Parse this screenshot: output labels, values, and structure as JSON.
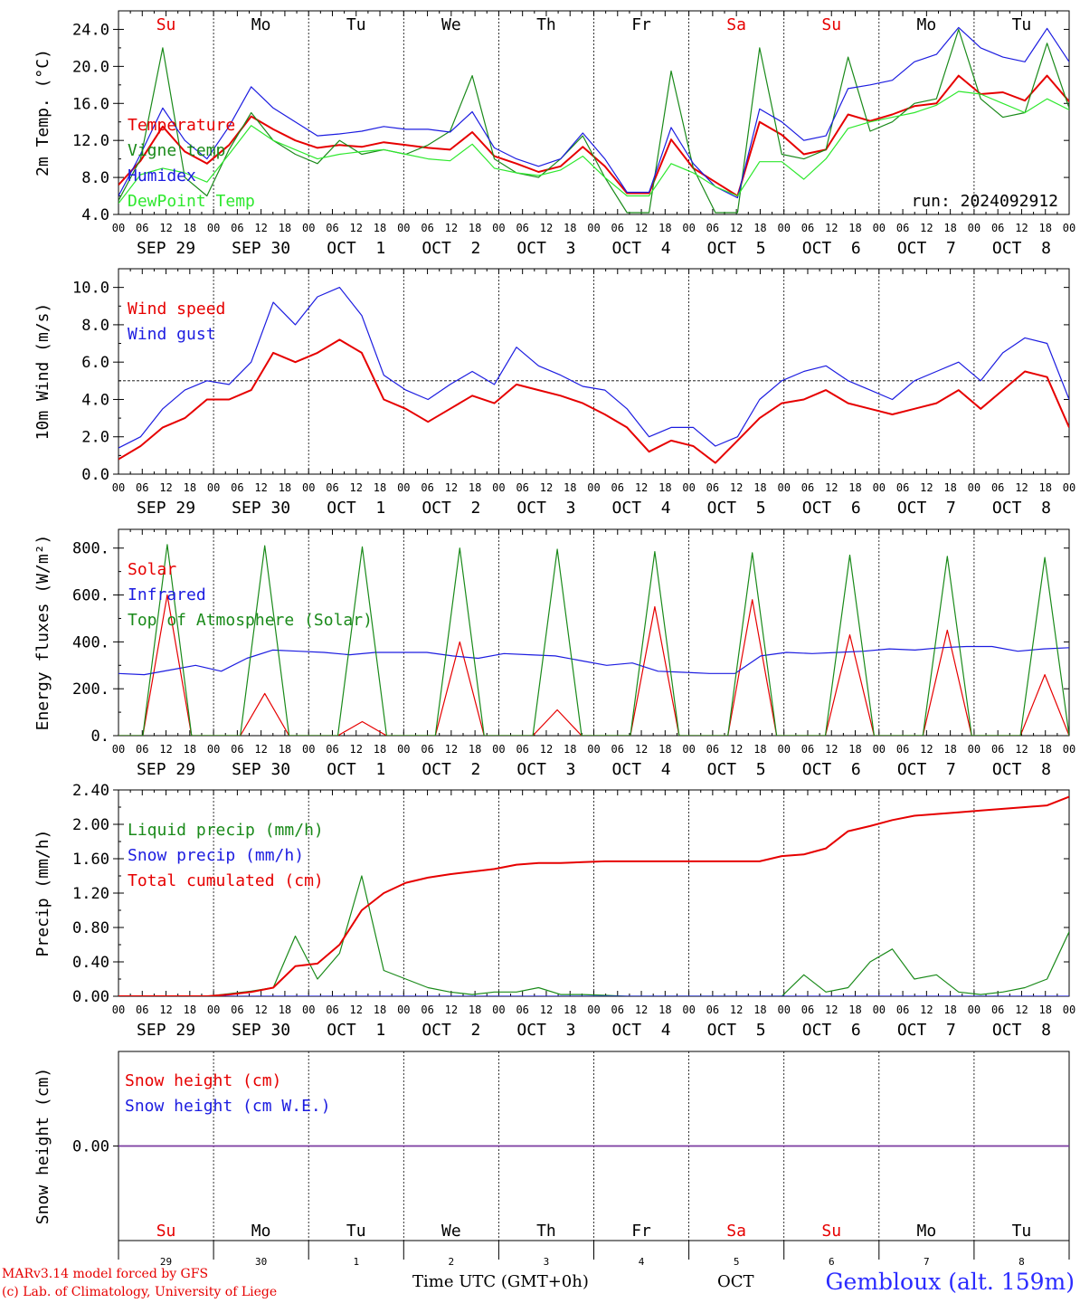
{
  "days": [
    {
      "abbr": "Su",
      "label": "SEP 29",
      "num": "29",
      "weekend": true
    },
    {
      "abbr": "Mo",
      "label": "SEP 30",
      "num": "30",
      "weekend": false
    },
    {
      "abbr": "Tu",
      "label": "OCT  1",
      "num": "1",
      "weekend": false
    },
    {
      "abbr": "We",
      "label": "OCT  2",
      "num": "2",
      "weekend": false
    },
    {
      "abbr": "Th",
      "label": "OCT  3",
      "num": "3",
      "weekend": false
    },
    {
      "abbr": "Fr",
      "label": "OCT  4",
      "num": "4",
      "weekend": false
    },
    {
      "abbr": "Sa",
      "label": "OCT  5",
      "num": "5",
      "weekend": true
    },
    {
      "abbr": "Su",
      "label": "OCT  6",
      "num": "6",
      "weekend": true
    },
    {
      "abbr": "Mo",
      "label": "OCT  7",
      "num": "7",
      "weekend": false
    },
    {
      "abbr": "Tu",
      "label": "OCT  8",
      "num": "8",
      "weekend": false
    }
  ],
  "hour_ticks": [
    "00",
    "06",
    "12",
    "18"
  ],
  "colors": {
    "red": "#e60000",
    "green": "#1a8a1a",
    "blue": "#1c1ce0",
    "lightgreen": "#2ee82e",
    "purple": "#7a3aa0",
    "weekend": "#e60000"
  },
  "chart_data": [
    {
      "type": "line",
      "ylabel": "2m Temp. (°C)",
      "ylim": [
        4,
        26
      ],
      "yticks": [
        "4.0",
        "8.0",
        "12.0",
        "16.0",
        "20.0",
        "24.0"
      ],
      "annotation": "run: 2024092912",
      "x_hours_start": 0,
      "step_hours": 6,
      "series": [
        {
          "name": "Temperature",
          "color": "red",
          "values": [
            7.2,
            9.8,
            13.5,
            10.8,
            9.5,
            11.5,
            14.6,
            13.2,
            12.0,
            11.2,
            11.5,
            11.3,
            11.8,
            11.5,
            11.2,
            11.0,
            12.9,
            10.3,
            9.5,
            8.6,
            9.2,
            11.3,
            9.2,
            6.3,
            6.3,
            12.1,
            9.0,
            7.5,
            6.0,
            14.0,
            12.6,
            10.5,
            11.0,
            14.8,
            14.1,
            14.8,
            15.7,
            16.0,
            19.0,
            17.0,
            17.2,
            16.3,
            19.0,
            16.2
          ]
        },
        {
          "name": "Vigne temp",
          "color": "green",
          "values": [
            5.5,
            10.0,
            22.0,
            8.0,
            6.0,
            11.0,
            15.0,
            12.0,
            10.5,
            9.5,
            12.0,
            10.5,
            11.0,
            10.5,
            11.5,
            13.0,
            19.0,
            10.0,
            8.5,
            8.0,
            10.0,
            12.5,
            8.0,
            4.2,
            4.2,
            19.5,
            9.0,
            4.2,
            4.2,
            22.0,
            10.5,
            10.0,
            11.0,
            21.0,
            13.0,
            14.0,
            16.0,
            16.5,
            24.0,
            16.5,
            14.5,
            15.0,
            22.5,
            15.5
          ]
        },
        {
          "name": "Humidex",
          "color": "blue",
          "values": [
            6.0,
            10.5,
            15.5,
            12.0,
            10.0,
            13.5,
            17.8,
            15.5,
            14.0,
            12.5,
            12.7,
            13.0,
            13.5,
            13.2,
            13.2,
            12.9,
            15.1,
            11.2,
            10.0,
            9.2,
            10.0,
            12.8,
            10.0,
            6.4,
            6.4,
            13.4,
            9.5,
            7.0,
            5.8,
            15.4,
            14.0,
            12.0,
            12.5,
            17.6,
            18.0,
            18.5,
            20.5,
            21.3,
            24.2,
            22.0,
            21.0,
            20.5,
            24.1,
            20.5
          ]
        },
        {
          "name": "DewPoint Temp",
          "color": "lightgreen",
          "values": [
            5.2,
            8.3,
            9.0,
            8.5,
            7.5,
            10.5,
            13.6,
            12.0,
            11.0,
            10.0,
            10.5,
            10.8,
            11.0,
            10.5,
            10.0,
            9.8,
            11.6,
            9.0,
            8.5,
            8.2,
            8.8,
            10.3,
            8.0,
            6.0,
            6.0,
            9.5,
            8.5,
            7.0,
            6.0,
            9.7,
            9.7,
            7.8,
            10.0,
            13.3,
            14.0,
            14.5,
            15.0,
            15.8,
            17.3,
            17.0,
            16.0,
            15.0,
            16.5,
            15.3
          ]
        }
      ]
    },
    {
      "type": "line",
      "ylabel": "10m Wind (m/s)",
      "ylim": [
        0,
        11
      ],
      "yticks": [
        "0.0",
        "2.0",
        "4.0",
        "6.0",
        "8.0",
        "10.0"
      ],
      "reference_line": 5,
      "x_hours_start": 0,
      "step_hours": 6,
      "series": [
        {
          "name": "Wind speed",
          "color": "red",
          "values": [
            0.8,
            1.5,
            2.5,
            3.0,
            4.0,
            4.0,
            4.5,
            6.5,
            6.0,
            6.5,
            7.2,
            6.5,
            4.0,
            3.5,
            2.8,
            3.5,
            4.2,
            3.8,
            4.8,
            4.5,
            4.2,
            3.8,
            3.2,
            2.5,
            1.2,
            1.8,
            1.5,
            0.6,
            1.8,
            3.0,
            3.8,
            4.0,
            4.5,
            3.8,
            3.5,
            3.2,
            3.5,
            3.8,
            4.5,
            3.5,
            4.5,
            5.5,
            5.2,
            2.5
          ]
        },
        {
          "name": "Wind gust",
          "color": "blue",
          "values": [
            1.4,
            2.0,
            3.5,
            4.5,
            5.0,
            4.8,
            6.0,
            9.2,
            8.0,
            9.5,
            10.0,
            8.5,
            5.3,
            4.5,
            4.0,
            4.8,
            5.5,
            4.8,
            6.8,
            5.8,
            5.3,
            4.7,
            4.5,
            3.5,
            2.0,
            2.5,
            2.5,
            1.5,
            2.0,
            4.0,
            5.0,
            5.5,
            5.8,
            5.0,
            4.5,
            4.0,
            5.0,
            5.5,
            6.0,
            5.0,
            6.5,
            7.3,
            7.0,
            4.0
          ]
        }
      ]
    },
    {
      "type": "line",
      "ylabel": "Energy fluxes (W/m²)",
      "ylim": [
        0,
        880
      ],
      "yticks": [
        "0.",
        "200.",
        "400.",
        "600.",
        "800."
      ],
      "x_hours_start": 0,
      "step_hours": 6,
      "series": [
        {
          "name": "Solar",
          "color": "red",
          "values": [
            0,
            0,
            600,
            0,
            0,
            0,
            180,
            0,
            0,
            0,
            60,
            0,
            0,
            0,
            400,
            0,
            0,
            0,
            110,
            0,
            0,
            0,
            550,
            0,
            0,
            0,
            580,
            0,
            0,
            0,
            430,
            0,
            0,
            0,
            450,
            0,
            0,
            0,
            260,
            0
          ]
        },
        {
          "name": "Infrared",
          "color": "blue",
          "values": [
            265,
            260,
            280,
            300,
            275,
            330,
            365,
            360,
            355,
            345,
            355,
            355,
            355,
            340,
            330,
            350,
            345,
            340,
            320,
            300,
            310,
            275,
            270,
            265,
            265,
            340,
            355,
            350,
            355,
            360,
            370,
            365,
            375,
            380,
            380,
            360,
            370,
            375
          ]
        },
        {
          "name": "Top of Atmosphere (Solar)",
          "color": "green",
          "values": [
            0,
            0,
            815,
            0,
            0,
            0,
            810,
            0,
            0,
            0,
            805,
            0,
            0,
            0,
            800,
            0,
            0,
            0,
            795,
            0,
            0,
            0,
            785,
            0,
            0,
            0,
            780,
            0,
            0,
            0,
            770,
            0,
            0,
            0,
            765,
            0,
            0,
            0,
            760,
            0
          ]
        }
      ]
    },
    {
      "type": "line",
      "ylabel": "Precip (mm/h)",
      "ylim": [
        0,
        2.4
      ],
      "yticks": [
        "0.00",
        "0.40",
        "0.80",
        "1.20",
        "1.60",
        "2.00",
        "2.40"
      ],
      "x_hours_start": 0,
      "step_hours": 6,
      "series": [
        {
          "name": "Liquid precip (mm/h)",
          "color": "green",
          "values": [
            0,
            0,
            0,
            0,
            0,
            0.03,
            0.06,
            0.1,
            0.7,
            0.2,
            0.5,
            1.4,
            0.3,
            0.2,
            0.1,
            0.05,
            0.02,
            0.05,
            0.05,
            0.1,
            0.02,
            0.02,
            0.01,
            0,
            0,
            0,
            0,
            0,
            0,
            0,
            0,
            0.25,
            0.05,
            0.1,
            0.4,
            0.55,
            0.2,
            0.25,
            0.05,
            0.02,
            0.05,
            0.1,
            0.2,
            0.75
          ]
        },
        {
          "name": "Snow precip (mm/h)",
          "color": "blue",
          "values": [
            0,
            0,
            0,
            0,
            0,
            0,
            0,
            0,
            0,
            0,
            0,
            0,
            0,
            0,
            0,
            0,
            0,
            0,
            0,
            0,
            0,
            0,
            0,
            0,
            0,
            0,
            0,
            0,
            0,
            0,
            0,
            0,
            0,
            0,
            0,
            0,
            0,
            0,
            0,
            0,
            0,
            0,
            0,
            0
          ]
        },
        {
          "name": "Total cumulated (cm)",
          "color": "red",
          "values": [
            0,
            0,
            0,
            0,
            0,
            0.02,
            0.05,
            0.1,
            0.35,
            0.38,
            0.6,
            1.0,
            1.2,
            1.32,
            1.38,
            1.42,
            1.45,
            1.48,
            1.53,
            1.55,
            1.55,
            1.56,
            1.57,
            1.57,
            1.57,
            1.57,
            1.57,
            1.57,
            1.57,
            1.57,
            1.63,
            1.65,
            1.72,
            1.92,
            1.98,
            2.05,
            2.1,
            2.12,
            2.14,
            2.16,
            2.18,
            2.2,
            2.22,
            2.32
          ]
        }
      ]
    },
    {
      "type": "line",
      "ylabel": "Snow height (cm)",
      "ylim": [
        -1,
        1
      ],
      "yticks": [
        "0.00"
      ],
      "series": [
        {
          "name": "Snow height (cm)",
          "color": "red",
          "values": [
            0,
            0
          ]
        },
        {
          "name": "Snow height (cm W.E.)",
          "color": "blue",
          "values": [
            0,
            0
          ]
        }
      ]
    }
  ],
  "footer": {
    "model_line1": "MARv3.14 model forced by GFS",
    "model_line2": "(c) Lab. of Climatology, University of Liege",
    "time_label": "Time UTC (GMT+0h)",
    "month_label": "OCT",
    "station": "Gembloux (alt. 159m)"
  }
}
